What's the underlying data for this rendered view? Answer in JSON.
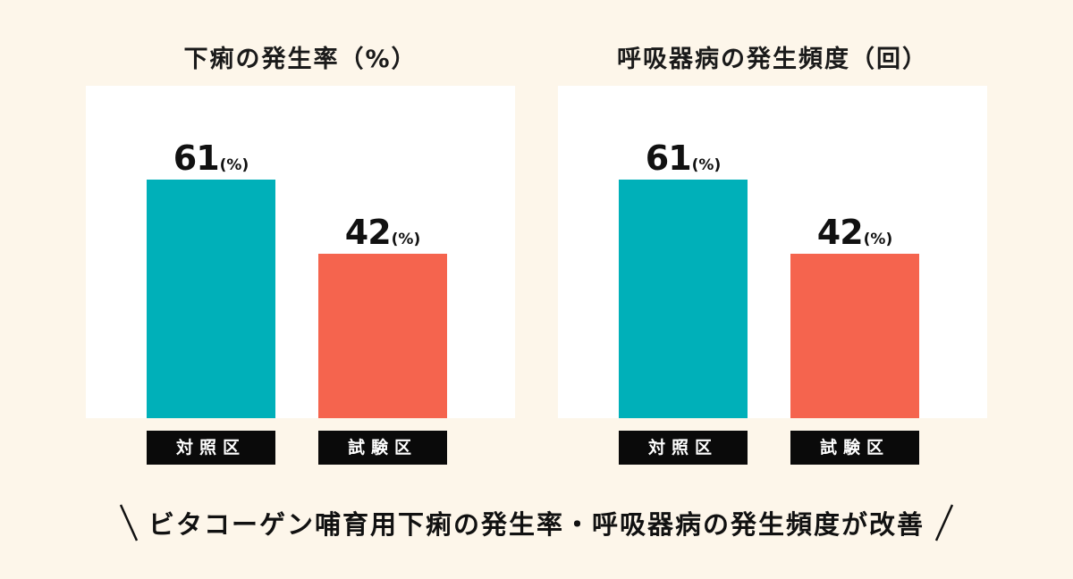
{
  "caption": "ビタコーゲン哺育用下痢の発生率・呼吸器病の発生頻度が改善",
  "colors": {
    "control": "#00b0b9",
    "test": "#f5644e",
    "background": "#fdf6ea",
    "plot_bg": "#ffffff"
  },
  "chart_data": [
    {
      "type": "bar",
      "title": "下痢の発生率（%）",
      "categories": [
        "対照区",
        "試験区"
      ],
      "values": [
        61,
        42
      ],
      "value_labels": [
        "61",
        "42"
      ],
      "unit_label": "(%)",
      "ylim": [
        0,
        85
      ],
      "grid": false
    },
    {
      "type": "bar",
      "title": "呼吸器病の発生頻度（回）",
      "categories": [
        "対照区",
        "試験区"
      ],
      "values": [
        61,
        42
      ],
      "value_labels": [
        "61",
        "42"
      ],
      "unit_label": "(%)",
      "ylim": [
        0,
        85
      ],
      "grid": false
    }
  ]
}
